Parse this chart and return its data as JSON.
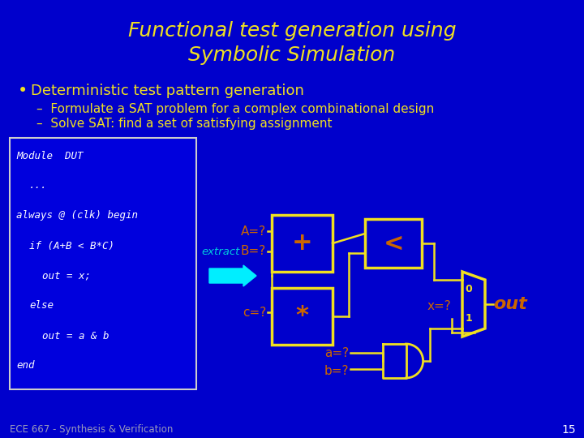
{
  "bg_color": "#0000cc",
  "title_line1": "Functional test generation using",
  "title_line2": "Symbolic Simulation",
  "title_color": "#f0e020",
  "title_fontsize": 18,
  "bullet_color": "#f0e020",
  "bullet_text": "Deterministic test pattern generation",
  "bullet_fontsize": 13,
  "sub1": "–  Formulate a SAT problem for a complex combinational design",
  "sub2": "–  Solve SAT: find a set of satisfying assignment",
  "sub_fontsize": 11,
  "code_lines": [
    "Module  DUT",
    "   ...",
    "always @ (clk) begin",
    "   if (A+B < B*C)",
    "      out = x;",
    "   else",
    "      out = a & b",
    "end"
  ],
  "code_color": "#ffffff",
  "code_fontsize": 9,
  "code_bg": "#0000dd",
  "code_border": "#cccccc",
  "extract_color": "#00eeff",
  "extract_text_color": "#00ccdd",
  "gate_fill": "#0000cc",
  "gate_border": "#f0e020",
  "label_color": "#cc6600",
  "out_color": "#cc6600",
  "footer": "ECE 667 - Synthesis & Verification",
  "footer_color": "#9999bb",
  "page_num": "15",
  "page_color": "#ffffff"
}
